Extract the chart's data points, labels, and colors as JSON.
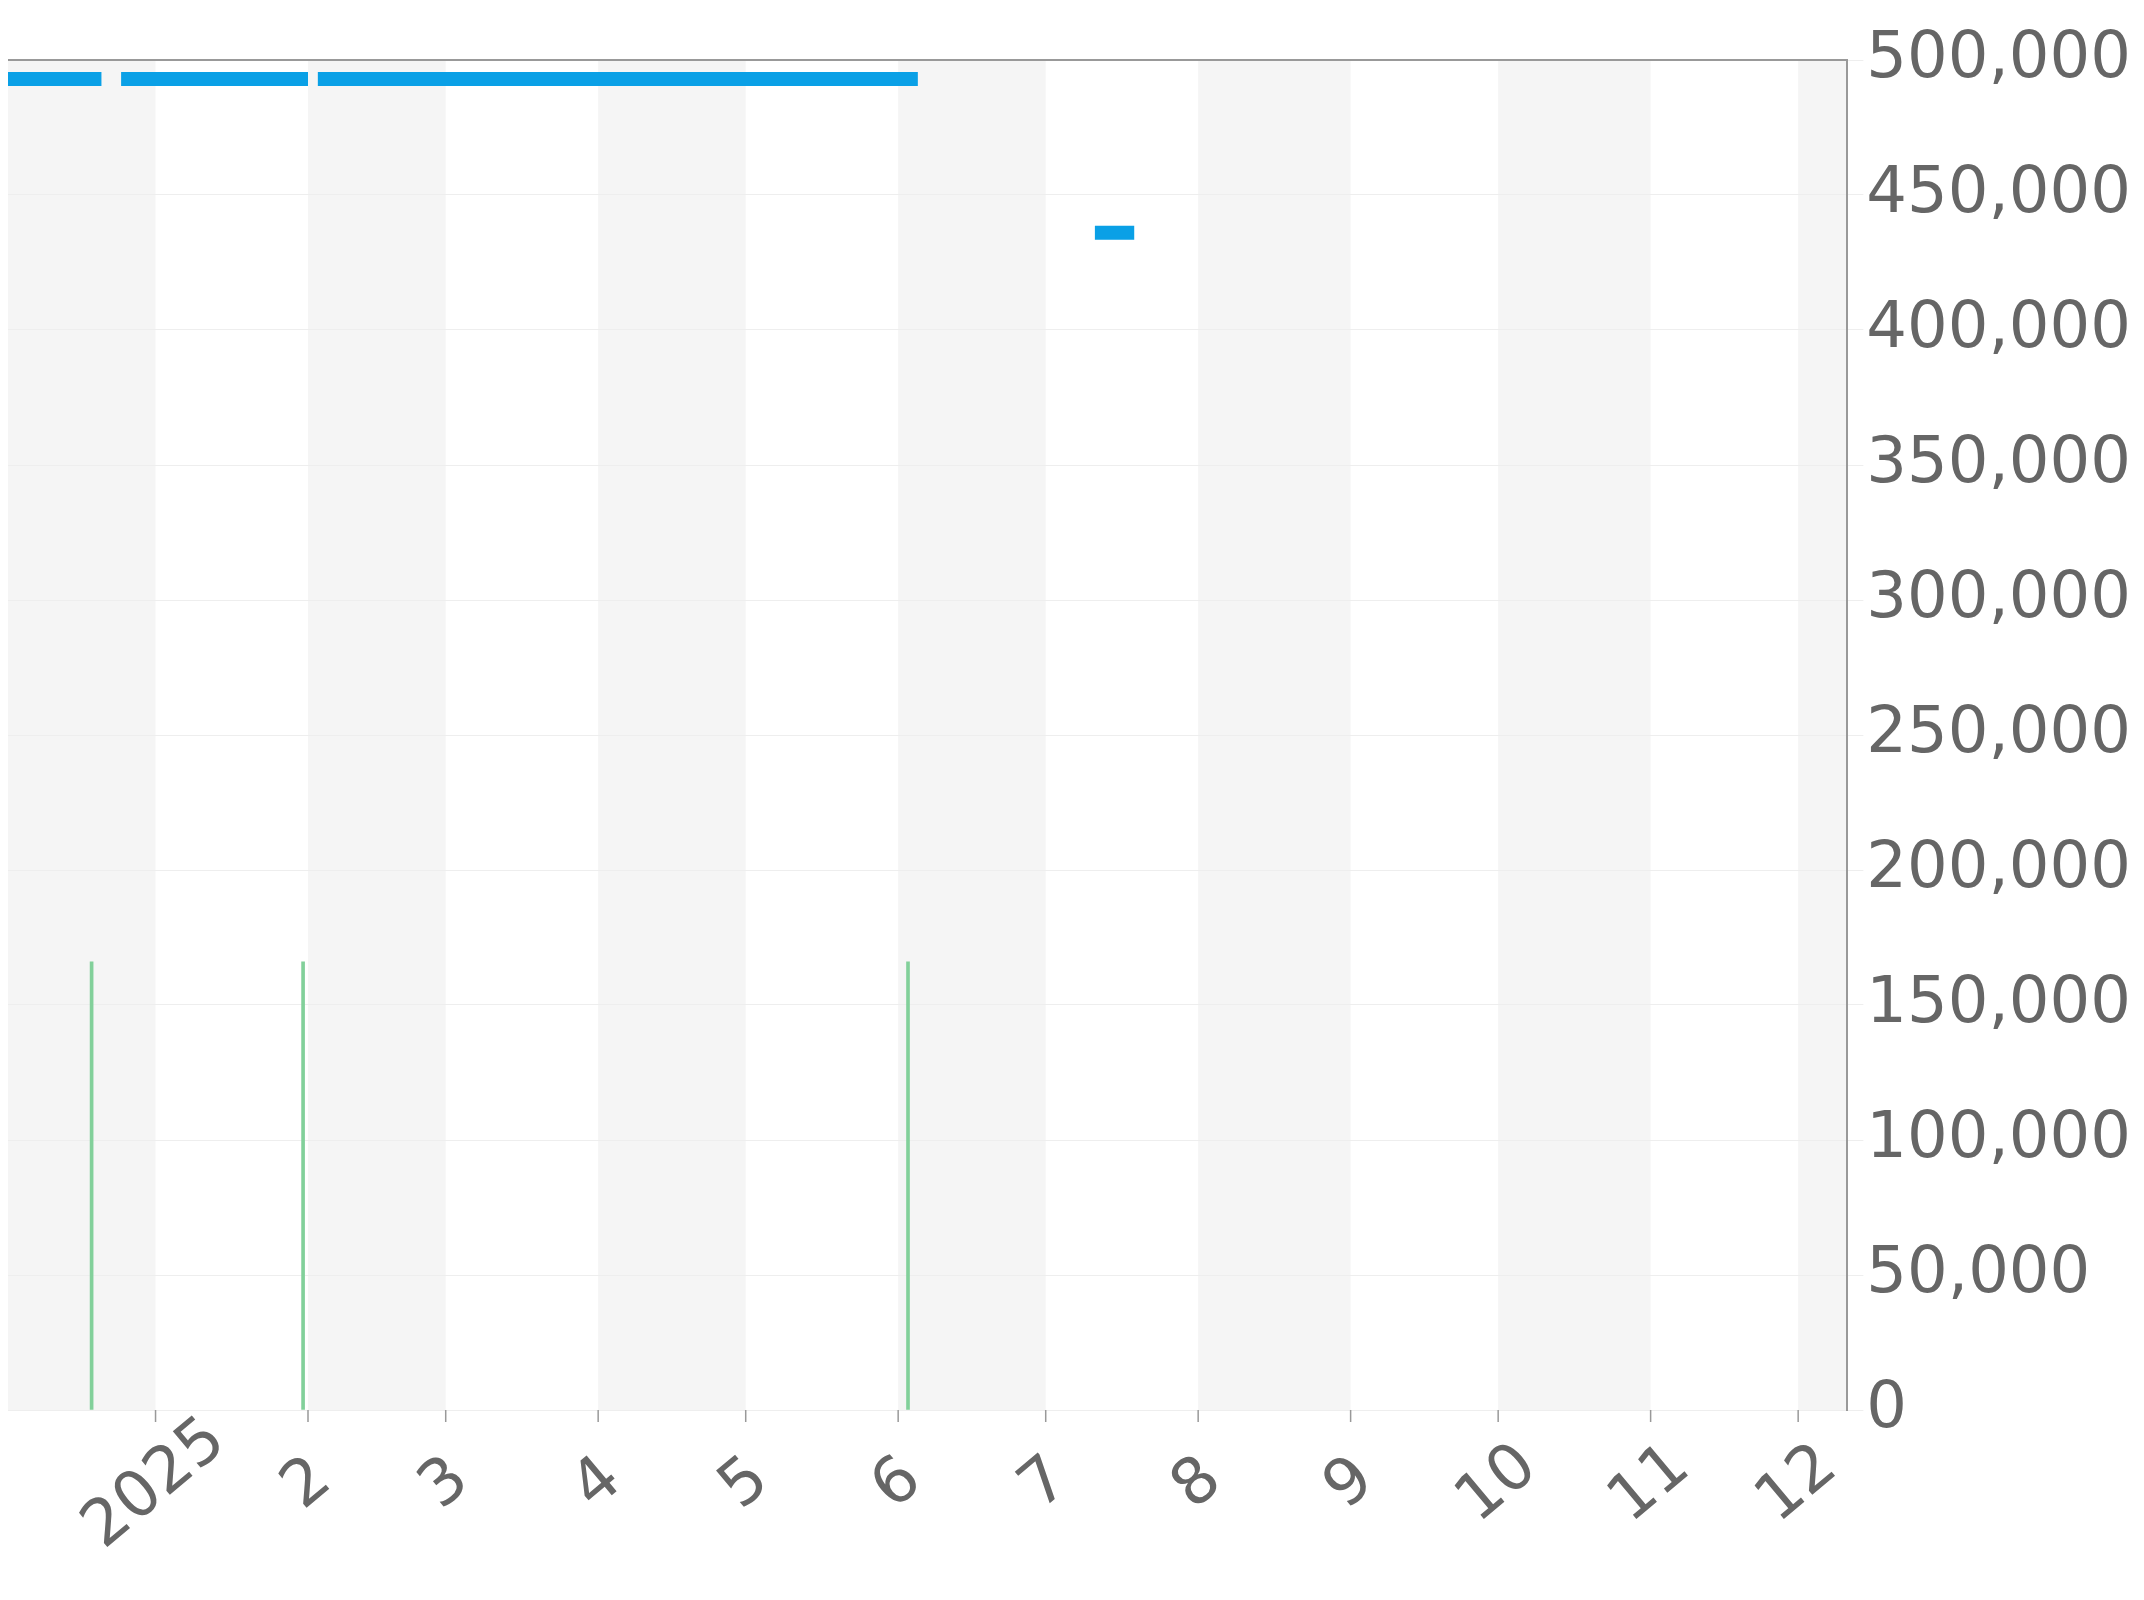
{
  "chart_data": {
    "type": "line",
    "series": [
      {
        "color": "#0aa0e6",
        "x": [
          "2024-12-02",
          "2024-12-21",
          "2024-12-23",
          "2024-12-25",
          "2025-02-01",
          "2025-02-02",
          "2025-02-03",
          "2025-06-05",
          "2025-06-20",
          "2025-07-11",
          "2025-07-19"
        ],
        "values": [
          493000,
          493000,
          null,
          493000,
          493000,
          null,
          493000,
          493000,
          null,
          436000,
          436000
        ]
      },
      {
        "type": "bar",
        "color": "#82d09a",
        "x": [
          "2024-12-19",
          "2025-01-31",
          "2025-06-03"
        ],
        "values": [
          166000,
          166000,
          166000
        ]
      }
    ],
    "xlim": [
      "2024-12-02",
      "2025-12-11"
    ],
    "xticks": [
      {
        "value": "2025-01-01",
        "label": "2025"
      },
      {
        "value": "2025-02-01",
        "label": "2"
      },
      {
        "value": "2025-03-01",
        "label": "3"
      },
      {
        "value": "2025-04-01",
        "label": "4"
      },
      {
        "value": "2025-05-01",
        "label": "5"
      },
      {
        "value": "2025-06-01",
        "label": "6"
      },
      {
        "value": "2025-07-01",
        "label": "7"
      },
      {
        "value": "2025-08-01",
        "label": "8"
      },
      {
        "value": "2025-09-01",
        "label": "9"
      },
      {
        "value": "2025-10-01",
        "label": "10"
      },
      {
        "value": "2025-11-01",
        "label": "11"
      },
      {
        "value": "2025-12-01",
        "label": "12"
      }
    ],
    "ylim": [
      0,
      500000
    ],
    "yticks": [
      {
        "value": 0,
        "label": "0"
      },
      {
        "value": 50000,
        "label": "50,000"
      },
      {
        "value": 100000,
        "label": "100,000"
      },
      {
        "value": 150000,
        "label": "150,000"
      },
      {
        "value": 200000,
        "label": "200,000"
      },
      {
        "value": 250000,
        "label": "250,000"
      },
      {
        "value": 300000,
        "label": "300,000"
      },
      {
        "value": 350000,
        "label": "350,000"
      },
      {
        "value": 400000,
        "label": "400,000"
      },
      {
        "value": 450000,
        "label": "450,000"
      },
      {
        "value": 500000,
        "label": "500,000"
      }
    ],
    "bands": [
      {
        "axis": "x",
        "from": "2024-12-02",
        "to": "2025-01-01",
        "color": "#f5f5f5"
      },
      {
        "axis": "x",
        "from": "2025-02-01",
        "to": "2025-03-01",
        "color": "#f5f5f5"
      },
      {
        "axis": "x",
        "from": "2025-04-01",
        "to": "2025-05-01",
        "color": "#f5f5f5"
      },
      {
        "axis": "x",
        "from": "2025-06-01",
        "to": "2025-07-01",
        "color": "#f5f5f5"
      },
      {
        "axis": "x",
        "from": "2025-08-01",
        "to": "2025-09-01",
        "color": "#f5f5f5"
      },
      {
        "axis": "x",
        "from": "2025-10-01",
        "to": "2025-11-01",
        "color": "#f5f5f5"
      },
      {
        "axis": "x",
        "from": "2025-12-01",
        "to": "2025-12-11",
        "color": "#f5f5f5"
      }
    ],
    "grid": "y",
    "legend": false,
    "marker": "none",
    "line_style": "solid"
  }
}
